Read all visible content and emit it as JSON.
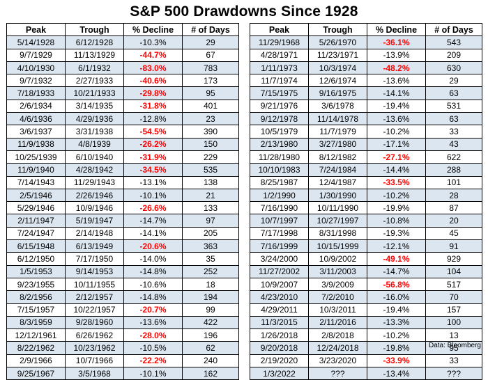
{
  "title": "S&P 500 Drawdowns Since 1928",
  "headers": [
    "Peak",
    "Trough",
    "% Decline",
    "# of Days"
  ],
  "left_rows": [
    [
      "5/14/1928",
      "6/12/1928",
      "-10.3%",
      "29",
      false
    ],
    [
      "9/7/1929",
      "11/13/1929",
      "-44.7%",
      "67",
      true
    ],
    [
      "4/10/1930",
      "6/1/1932",
      "-83.0%",
      "783",
      true
    ],
    [
      "9/7/1932",
      "2/27/1933",
      "-40.6%",
      "173",
      true
    ],
    [
      "7/18/1933",
      "10/21/1933",
      "-29.8%",
      "95",
      true
    ],
    [
      "2/6/1934",
      "3/14/1935",
      "-31.8%",
      "401",
      true
    ],
    [
      "4/6/1936",
      "4/29/1936",
      "-12.8%",
      "23",
      false
    ],
    [
      "3/6/1937",
      "3/31/1938",
      "-54.5%",
      "390",
      true
    ],
    [
      "11/9/1938",
      "4/8/1939",
      "-26.2%",
      "150",
      true
    ],
    [
      "10/25/1939",
      "6/10/1940",
      "-31.9%",
      "229",
      true
    ],
    [
      "11/9/1940",
      "4/28/1942",
      "-34.5%",
      "535",
      true
    ],
    [
      "7/14/1943",
      "11/29/1943",
      "-13.1%",
      "138",
      false
    ],
    [
      "2/5/1946",
      "2/26/1946",
      "-10.1%",
      "21",
      false
    ],
    [
      "5/29/1946",
      "10/9/1946",
      "-26.6%",
      "133",
      true
    ],
    [
      "2/11/1947",
      "5/19/1947",
      "-14.7%",
      "97",
      false
    ],
    [
      "7/24/1947",
      "2/14/1948",
      "-14.1%",
      "205",
      false
    ],
    [
      "6/15/1948",
      "6/13/1949",
      "-20.6%",
      "363",
      true
    ],
    [
      "6/12/1950",
      "7/17/1950",
      "-14.0%",
      "35",
      false
    ],
    [
      "1/5/1953",
      "9/14/1953",
      "-14.8%",
      "252",
      false
    ],
    [
      "9/23/1955",
      "10/11/1955",
      "-10.6%",
      "18",
      false
    ],
    [
      "8/2/1956",
      "2/12/1957",
      "-14.8%",
      "194",
      false
    ],
    [
      "7/15/1957",
      "10/22/1957",
      "-20.7%",
      "99",
      true
    ],
    [
      "8/3/1959",
      "9/28/1960",
      "-13.6%",
      "422",
      false
    ],
    [
      "12/12/1961",
      "6/26/1962",
      "-28.0%",
      "196",
      true
    ],
    [
      "8/22/1962",
      "10/23/1962",
      "-10.5%",
      "62",
      false
    ],
    [
      "2/9/1966",
      "10/7/1966",
      "-22.2%",
      "240",
      true
    ],
    [
      "9/25/1967",
      "3/5/1968",
      "-10.1%",
      "162",
      false
    ]
  ],
  "right_rows": [
    [
      "11/29/1968",
      "5/26/1970",
      "-36.1%",
      "543",
      true
    ],
    [
      "4/28/1971",
      "11/23/1971",
      "-13.9%",
      "209",
      false
    ],
    [
      "1/11/1973",
      "10/3/1974",
      "-48.2%",
      "630",
      true
    ],
    [
      "11/7/1974",
      "12/6/1974",
      "-13.6%",
      "29",
      false
    ],
    [
      "7/15/1975",
      "9/16/1975",
      "-14.1%",
      "63",
      false
    ],
    [
      "9/21/1976",
      "3/6/1978",
      "-19.4%",
      "531",
      false
    ],
    [
      "9/12/1978",
      "11/14/1978",
      "-13.6%",
      "63",
      false
    ],
    [
      "10/5/1979",
      "11/7/1979",
      "-10.2%",
      "33",
      false
    ],
    [
      "2/13/1980",
      "3/27/1980",
      "-17.1%",
      "43",
      false
    ],
    [
      "11/28/1980",
      "8/12/1982",
      "-27.1%",
      "622",
      true
    ],
    [
      "10/10/1983",
      "7/24/1984",
      "-14.4%",
      "288",
      false
    ],
    [
      "8/25/1987",
      "12/4/1987",
      "-33.5%",
      "101",
      true
    ],
    [
      "1/2/1990",
      "1/30/1990",
      "-10.2%",
      "28",
      false
    ],
    [
      "7/16/1990",
      "10/11/1990",
      "-19.9%",
      "87",
      false
    ],
    [
      "10/7/1997",
      "10/27/1997",
      "-10.8%",
      "20",
      false
    ],
    [
      "7/17/1998",
      "8/31/1998",
      "-19.3%",
      "45",
      false
    ],
    [
      "7/16/1999",
      "10/15/1999",
      "-12.1%",
      "91",
      false
    ],
    [
      "3/24/2000",
      "10/9/2002",
      "-49.1%",
      "929",
      true
    ],
    [
      "11/27/2002",
      "3/11/2003",
      "-14.7%",
      "104",
      false
    ],
    [
      "10/9/2007",
      "3/9/2009",
      "-56.8%",
      "517",
      true
    ],
    [
      "4/23/2010",
      "7/2/2010",
      "-16.0%",
      "70",
      false
    ],
    [
      "4/29/2011",
      "10/3/2011",
      "-19.4%",
      "157",
      false
    ],
    [
      "11/3/2015",
      "2/11/2016",
      "-13.3%",
      "100",
      false
    ],
    [
      "1/26/2018",
      "2/8/2018",
      "-10.2%",
      "13",
      false
    ],
    [
      "9/20/2018",
      "12/24/2018",
      "-19.8%",
      "95",
      false
    ],
    [
      "2/19/2020",
      "3/23/2020",
      "-33.9%",
      "33",
      true
    ],
    [
      "1/3/2022",
      "???",
      "-13.4%",
      "???",
      false
    ]
  ],
  "source": "Data: Bloomberg",
  "colors": {
    "highlight_red": "#ff0000",
    "band_blue": "#dce6f1"
  }
}
